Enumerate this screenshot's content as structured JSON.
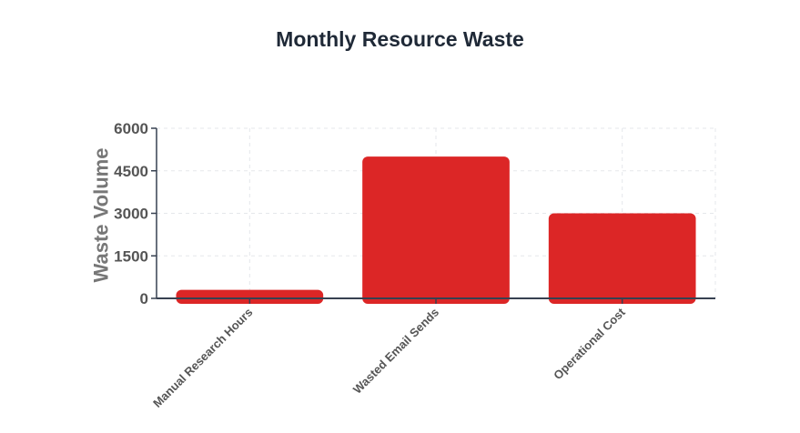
{
  "colors": {
    "bar": "#dc2626",
    "axis": "#374151",
    "grid": "#e5e7eb"
  },
  "chart_data": {
    "type": "bar",
    "title": "Monthly Resource Waste",
    "xlabel": "",
    "ylabel": "Waste Volume",
    "categories": [
      "Manual Research Hours",
      "Wasted Email Sends",
      "Operational Cost"
    ],
    "values": [
      300,
      5000,
      3000
    ],
    "ylim": [
      0,
      6000
    ],
    "yticks": [
      "0",
      "1500",
      "3000",
      "4500",
      "6000"
    ],
    "grid": true,
    "legend": "none"
  }
}
